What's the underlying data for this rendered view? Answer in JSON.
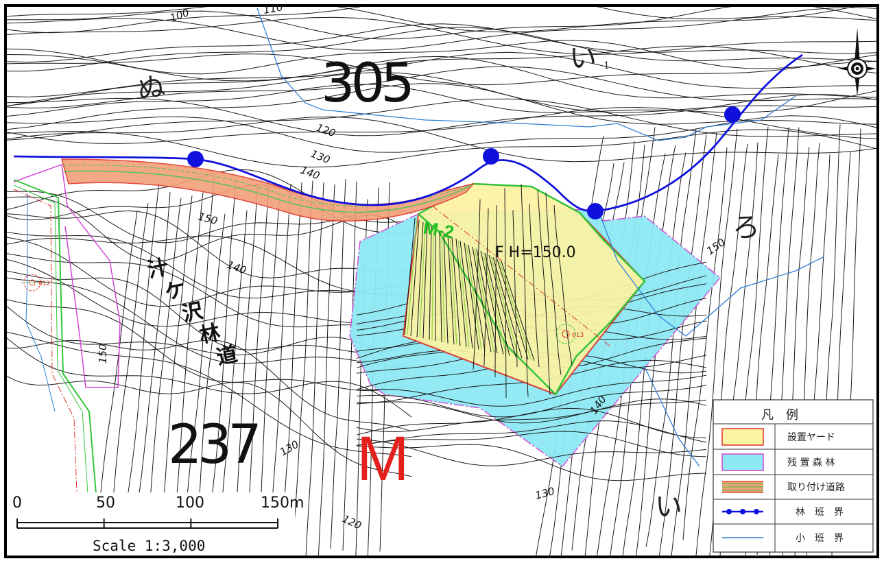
{
  "block_labels": {
    "north": "305",
    "south": "237",
    "site_marker": "M"
  },
  "subcompartment_labels": {
    "nu": "ぬ",
    "i1": "い",
    "i1_sub": "1",
    "ro": "ろ",
    "i_lower": "い"
  },
  "road_name": [
    "汁",
    "ケ",
    "沢",
    "林",
    "道"
  ],
  "site": {
    "id": "M-2",
    "formation_height": "F H=150.0"
  },
  "points": {
    "p1": "612",
    "p2": "613"
  },
  "contour_labels": {
    "c100": "100",
    "c110": "110",
    "c120": "120",
    "c130a": "130",
    "c140a": "140",
    "c150a": "150",
    "c140b": "140",
    "c150b": "150",
    "c150c": "150",
    "c140c": "140",
    "c130b": "130",
    "c130c": "130",
    "c120b": "120"
  },
  "legend": {
    "title": "凡　例",
    "items": [
      {
        "label": "設置ヤード",
        "style": "yard"
      },
      {
        "label": "残 置 森 林",
        "style": "forest"
      },
      {
        "label": "取り付け道路",
        "style": "road"
      },
      {
        "label": "林　班　界",
        "style": "compartment"
      },
      {
        "label": "小　班　界",
        "style": "subcompartment"
      }
    ]
  },
  "scale_bar": {
    "ticks": [
      "0",
      "50",
      "100",
      "150m"
    ],
    "caption": "Scale 1:3,000"
  },
  "colors": {
    "yard_fill": "#fcf3a3",
    "yard_border": "#e0332a",
    "forest_fill": "#8ee9f5",
    "forest_border": "#d444d4",
    "road_fill": "#f2a07a",
    "compartment": "#1010dd",
    "subcompartment": "#2f7fd6",
    "site_marker": "#e3201b",
    "site_id": "#22c022"
  },
  "north_arrow": "compass-icon"
}
